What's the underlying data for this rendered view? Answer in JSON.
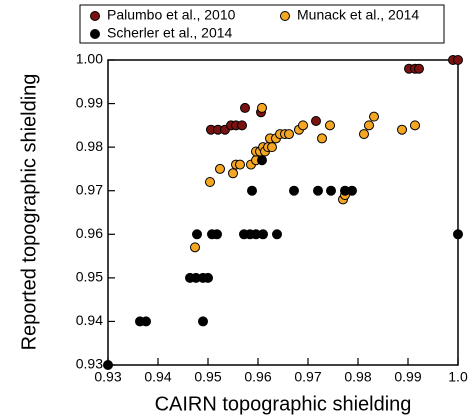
{
  "chart_data": {
    "type": "scatter",
    "x_label": "CAIRN topographic shielding",
    "y_label": "Reported topographic shielding",
    "xlim": [
      0.93,
      1.0
    ],
    "ylim": [
      0.93,
      1.0
    ],
    "xticks": [
      0.93,
      0.94,
      0.95,
      0.96,
      0.97,
      0.98,
      0.99,
      {
        "value": 1,
        "label": "1.0"
      }
    ],
    "yticks": [
      0.93,
      0.94,
      0.95,
      0.96,
      0.97,
      0.98,
      0.99,
      {
        "value": 1,
        "label": "1.00"
      }
    ],
    "series": [
      {
        "name": "Palumbo et al., 2010",
        "color": "#7a1212",
        "x": [
          0.9506,
          0.952,
          0.9534,
          0.9546,
          0.9556,
          0.9568,
          0.9574,
          0.9606,
          0.9716,
          0.9902,
          0.9914,
          0.9922,
          0.999,
          1.0
        ],
        "values": [
          0.984,
          0.984,
          0.984,
          0.985,
          0.985,
          0.985,
          0.989,
          0.988,
          0.986,
          0.998,
          0.998,
          0.998,
          1.0,
          1.0
        ]
      },
      {
        "name": "Munack et al., 2014",
        "color": "#f5a623",
        "x": [
          0.9474,
          0.9524,
          0.9504,
          0.955,
          0.9556,
          0.9564,
          0.9586,
          0.9596,
          0.9596,
          0.9604,
          0.961,
          0.9614,
          0.962,
          0.9628,
          0.9624,
          0.9636,
          0.9644,
          0.9654,
          0.9662,
          0.9608,
          0.9682,
          0.969,
          0.9728,
          0.9744,
          0.977,
          0.9774,
          0.9812,
          0.9822,
          0.9832,
          0.9888,
          0.9914
        ],
        "values": [
          0.957,
          0.975,
          0.972,
          0.974,
          0.976,
          0.976,
          0.976,
          0.977,
          0.979,
          0.979,
          0.98,
          0.979,
          0.98,
          0.98,
          0.982,
          0.982,
          0.983,
          0.983,
          0.983,
          0.989,
          0.984,
          0.985,
          0.982,
          0.985,
          0.968,
          0.969,
          0.983,
          0.985,
          0.987,
          0.984,
          0.985
        ]
      },
      {
        "name": "Scherler et al., 2014",
        "color": "#000000",
        "x": [
          0.93,
          0.9364,
          0.9376,
          0.949,
          0.9464,
          0.9476,
          0.949,
          0.95,
          0.9478,
          0.9508,
          0.9518,
          0.9572,
          0.9584,
          0.9596,
          0.961,
          0.9638,
          1.0,
          0.9588,
          0.9672,
          0.972,
          0.9746,
          0.9774,
          0.9788,
          0.9608
        ],
        "values": [
          0.93,
          0.94,
          0.94,
          0.94,
          0.95,
          0.95,
          0.95,
          0.95,
          0.96,
          0.96,
          0.96,
          0.96,
          0.96,
          0.96,
          0.96,
          0.96,
          0.96,
          0.97,
          0.97,
          0.97,
          0.97,
          0.97,
          0.97,
          0.977
        ]
      }
    ]
  }
}
